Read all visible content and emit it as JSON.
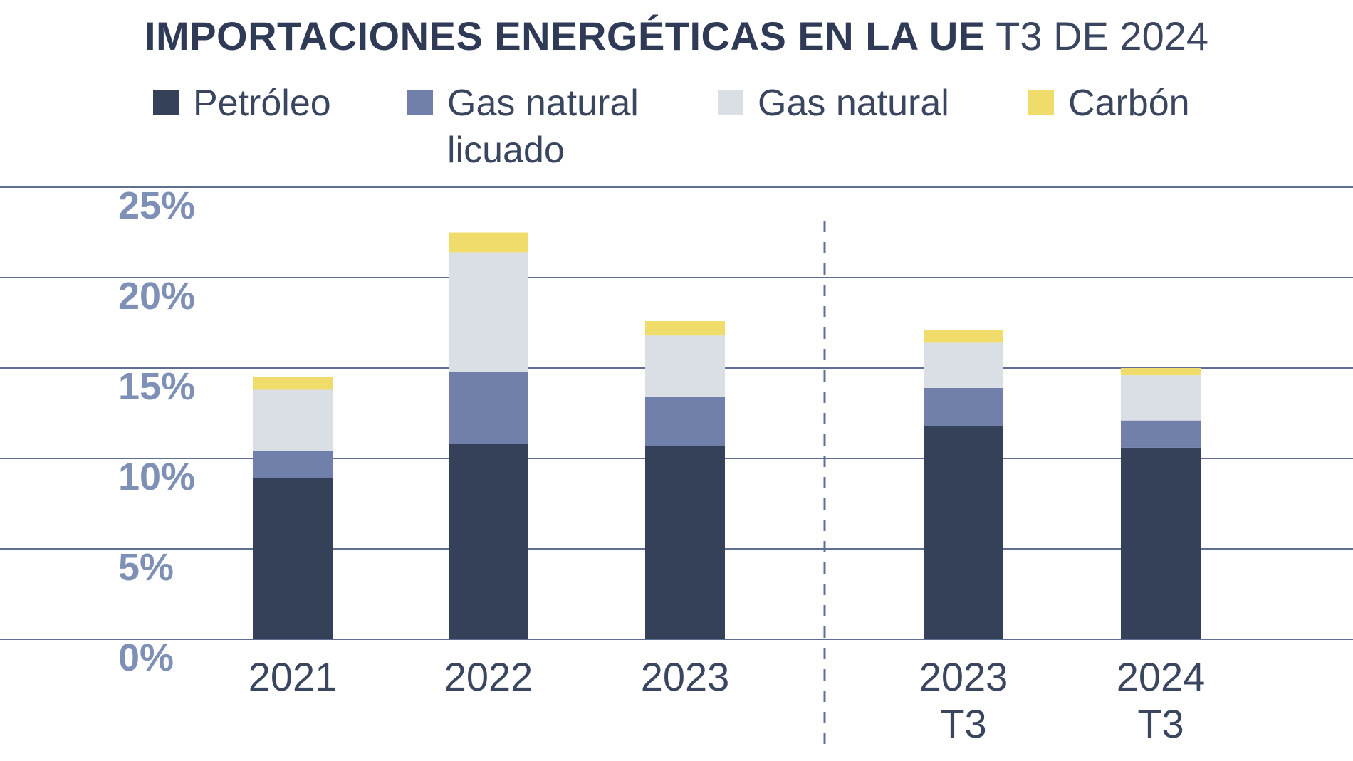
{
  "header": {
    "title_bold": "IMPORTACIONES ENERGÉTICAS EN LA UE",
    "title_light": "T3 DE 2024"
  },
  "colors": {
    "Petróleo": "#354059",
    "Gas natural licuado": "#717fab",
    "Gas natural": "#dadfe6",
    "Carbón": "#efdc6b",
    "gridline": "#5f6f92",
    "divider": "#5f6f92"
  },
  "legend": [
    {
      "label": "Petróleo",
      "color": "#354059"
    },
    {
      "label": "Gas natural licuado",
      "color": "#717fab"
    },
    {
      "label": "Gas natural",
      "color": "#dadfe6"
    },
    {
      "label": "Carbón",
      "color": "#efdc6b"
    }
  ],
  "chart_data": {
    "type": "bar",
    "stacked": true,
    "title": "IMPORTACIONES ENERGÉTICAS EN LA UE T3 DE 2024",
    "categories": [
      [
        "2021"
      ],
      [
        "2022"
      ],
      [
        "2023"
      ],
      [
        "2023",
        "T3"
      ],
      [
        "2024",
        "T3"
      ]
    ],
    "series": [
      {
        "name": "Petróleo",
        "values": [
          8.9,
          10.8,
          10.7,
          11.8,
          10.6
        ]
      },
      {
        "name": "Gas natural licuado",
        "values": [
          1.5,
          4.0,
          2.7,
          2.1,
          1.5
        ]
      },
      {
        "name": "Gas natural",
        "values": [
          3.4,
          6.6,
          3.4,
          2.5,
          2.5
        ]
      },
      {
        "name": "Carbón",
        "values": [
          0.7,
          1.1,
          0.8,
          0.7,
          0.4
        ]
      }
    ],
    "yticks": [
      "0%",
      "5%",
      "10%",
      "15%",
      "20%",
      "25%"
    ],
    "ytick_values": [
      0,
      5,
      10,
      15,
      20,
      25
    ],
    "ylim": [
      0,
      25
    ],
    "xlabel": "",
    "ylabel": "",
    "grid": true,
    "legend_position": "top"
  }
}
